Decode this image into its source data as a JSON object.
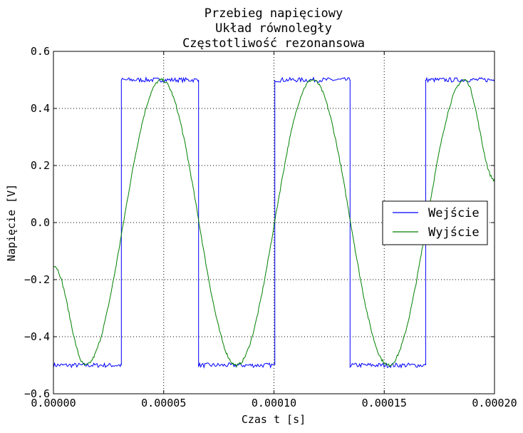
{
  "chart_data": {
    "type": "line",
    "title": [
      "Przebieg napięciowy",
      "Układ równoległy",
      "Częstotliwość rezonansowa"
    ],
    "xlabel": "Czas t [s]",
    "ylabel": "Napięcie [V]",
    "xlim": [
      0,
      0.0002
    ],
    "ylim": [
      -0.6,
      0.6
    ],
    "xticks": [
      0,
      5e-05,
      0.0001,
      0.00015,
      0.0002
    ],
    "xtick_labels": [
      "0.00000",
      "0.00005",
      "0.00010",
      "0.00015",
      "0.00020"
    ],
    "yticks": [
      -0.6,
      -0.4,
      -0.2,
      0.0,
      0.2,
      0.4,
      0.6
    ],
    "ytick_labels": [
      "−0.6",
      "−0.4",
      "−0.2",
      "0.0",
      "0.2",
      "0.4",
      "0.6"
    ],
    "grid": true,
    "legend_position": "center-right",
    "series": [
      {
        "name": "Wejście",
        "color": "#0000ff",
        "kind": "square",
        "x": [
          0,
          3.08e-05,
          3.08e-05,
          6.58e-05,
          6.58e-05,
          0.0001004,
          0.0001004,
          0.0001345,
          0.0001345,
          0.0001688,
          0.0001688,
          0.0002
        ],
        "y": [
          -0.5,
          -0.5,
          0.5,
          0.5,
          -0.5,
          -0.5,
          0.5,
          0.5,
          -0.5,
          -0.5,
          0.5,
          0.5
        ]
      },
      {
        "name": "Wyjście",
        "color": "#008000",
        "kind": "sine",
        "x": [
          0,
          1.45e-05,
          4.9e-05,
          8.3e-05,
          0.0001175,
          0.000152,
          0.0001865,
          0.0002
        ],
        "y": [
          -0.15,
          -0.5,
          0.5,
          -0.5,
          0.5,
          -0.5,
          0.5,
          0.15
        ]
      }
    ]
  }
}
